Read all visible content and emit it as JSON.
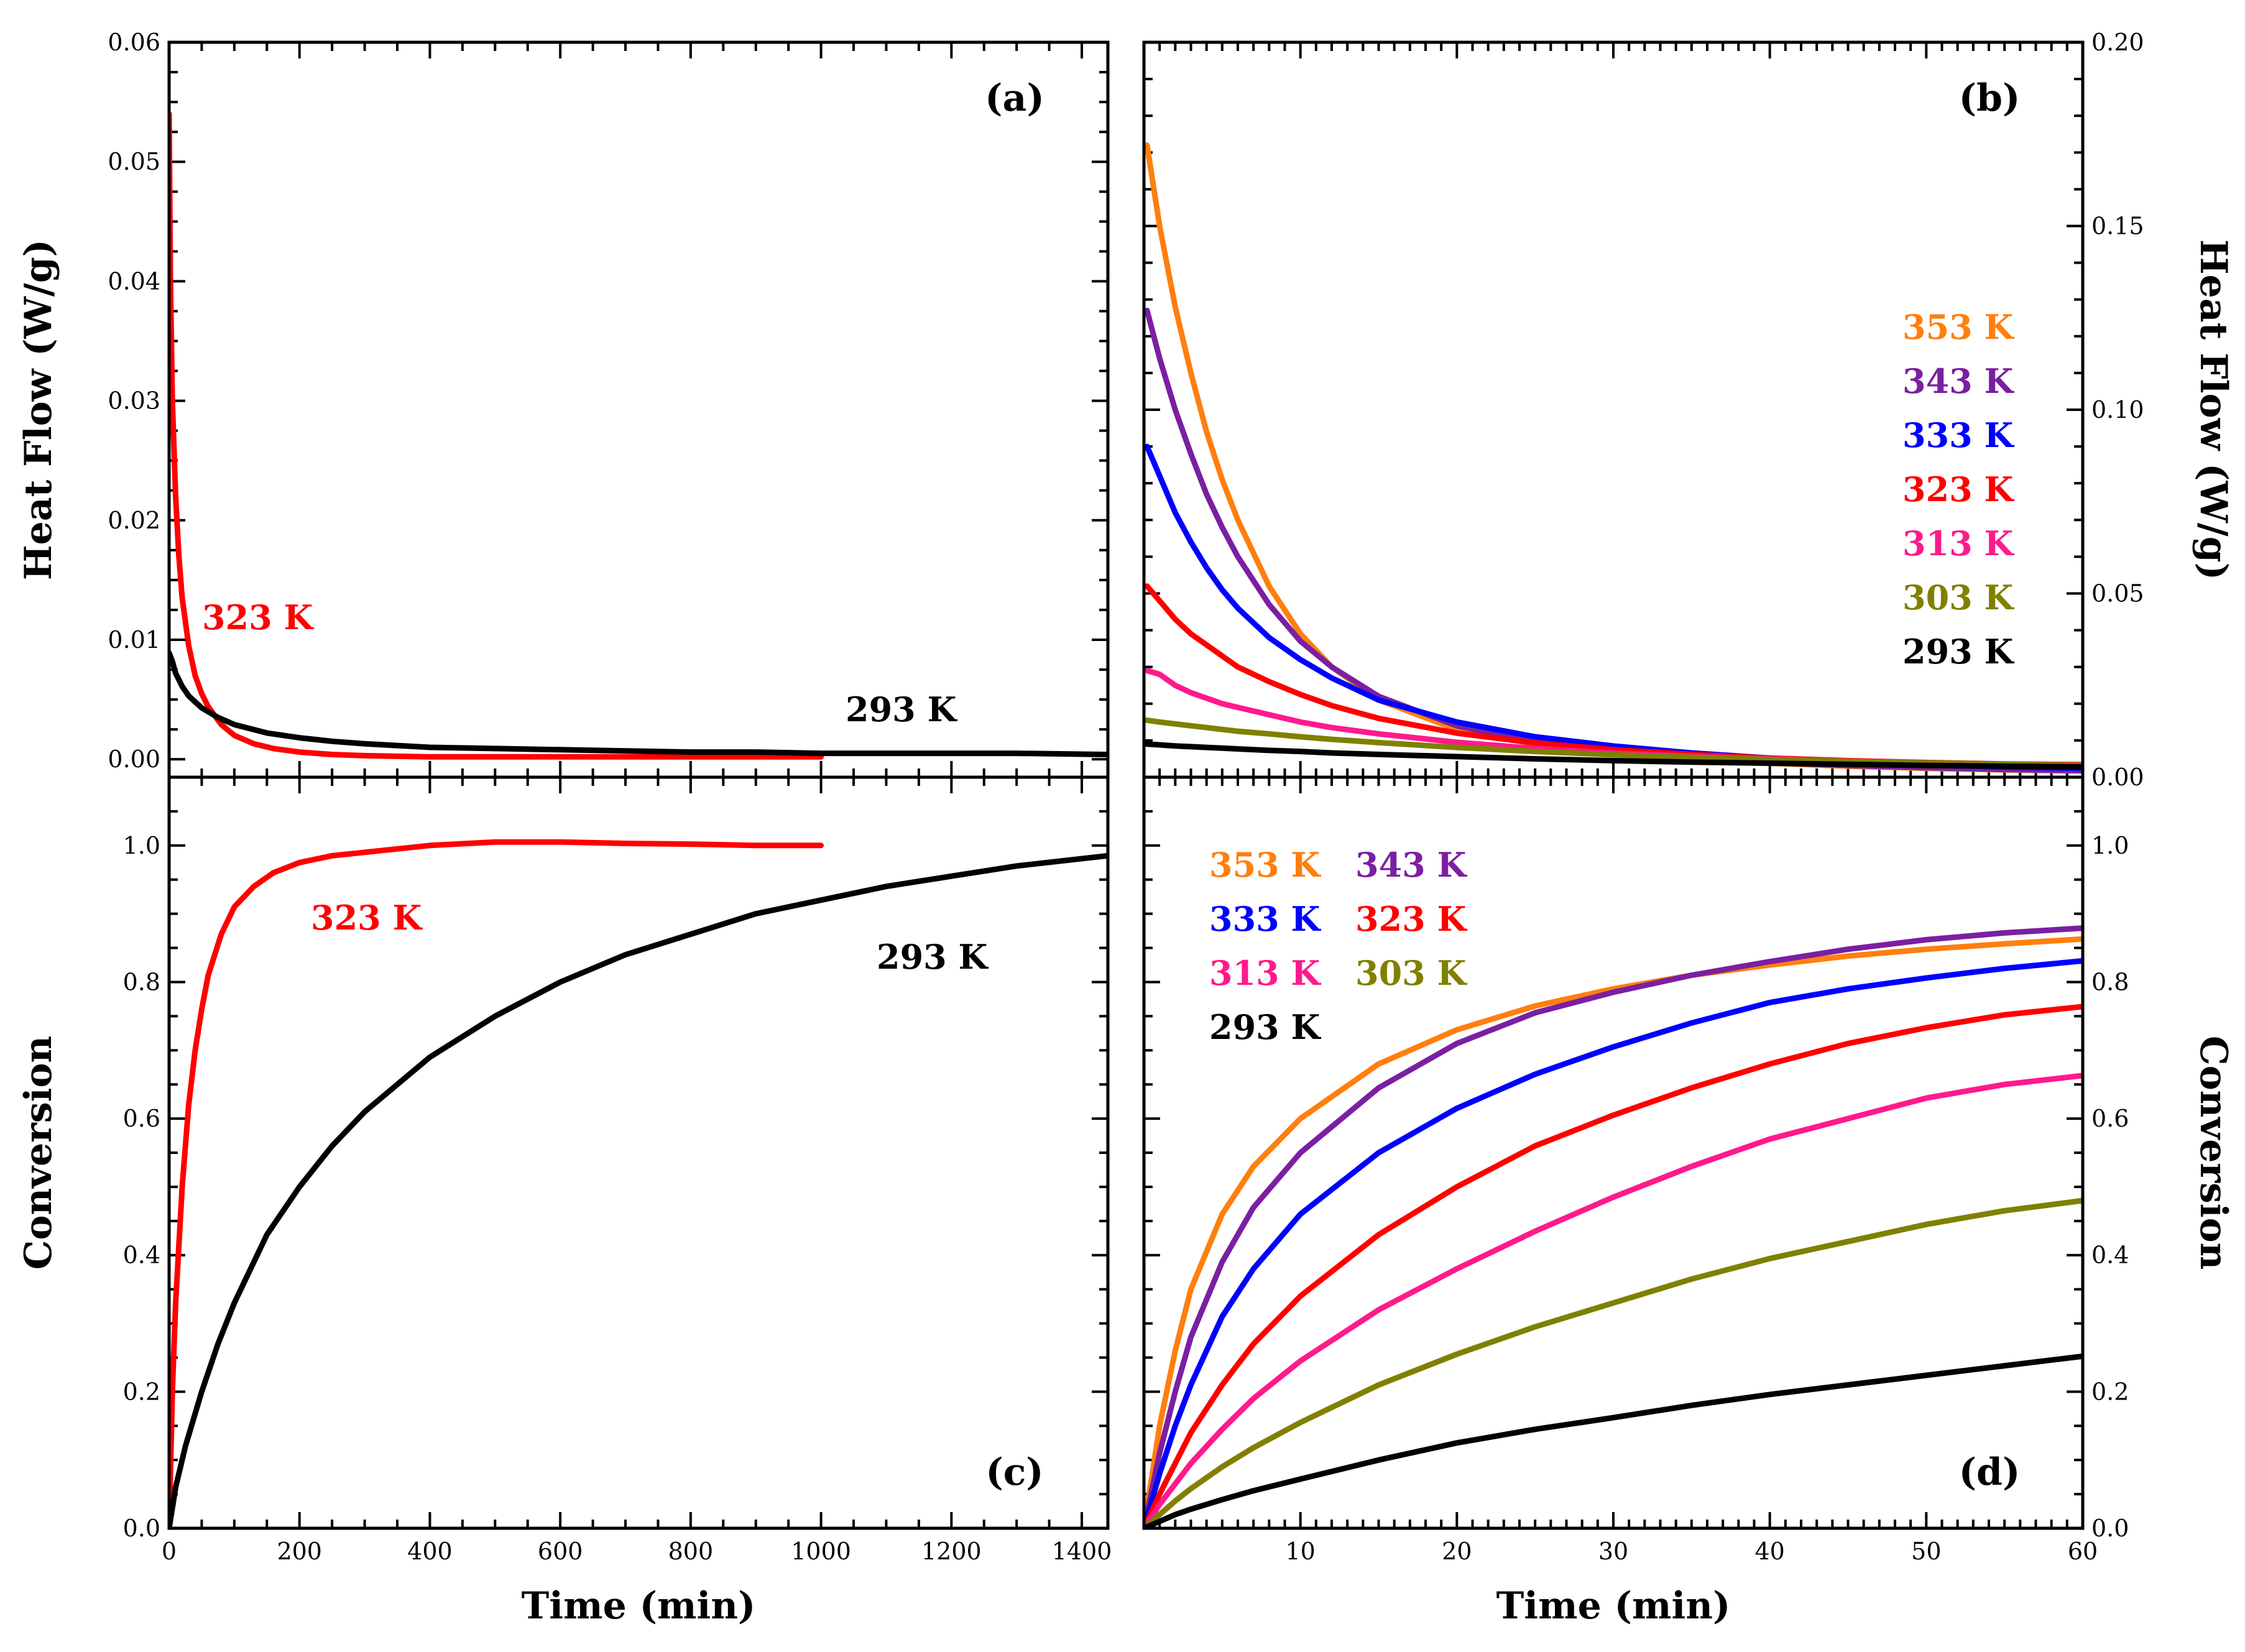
{
  "chart_data": [
    {
      "panel": "(a)",
      "type": "line",
      "xlabel": "",
      "ylabel": "Heat Flow (W/g)",
      "xlim": [
        0,
        1440
      ],
      "ylim": [
        -0.0015,
        0.06
      ],
      "x_ticks": [],
      "y_ticks": [
        "0.00",
        "0.01",
        "0.02",
        "0.03",
        "0.04",
        "0.05",
        "0.06"
      ],
      "annotations": [
        {
          "text": "323 K",
          "color": "#ff0000",
          "x": 50,
          "y": 0.0115
        },
        {
          "text": "293 K",
          "color": "#000000",
          "x": 1050,
          "y": 0.0043
        }
      ],
      "series": [
        {
          "label": "323 K",
          "color": "#ff0000",
          "x": [
            0,
            2,
            5,
            10,
            15,
            20,
            30,
            40,
            50,
            60,
            80,
            100,
            130,
            160,
            200,
            250,
            300,
            400,
            500,
            600,
            700,
            800,
            900,
            1000
          ],
          "y": [
            0.054,
            0.04,
            0.03,
            0.022,
            0.017,
            0.0135,
            0.0095,
            0.007,
            0.0055,
            0.0044,
            0.0029,
            0.002,
            0.0013,
            0.0009,
            0.0006,
            0.0004,
            0.0003,
            0.0002,
            0.0002,
            0.0002,
            0.0002,
            0.0002,
            0.0002,
            0.0002
          ]
        },
        {
          "label": "293 K",
          "color": "#000000",
          "x": [
            0,
            5,
            10,
            20,
            30,
            50,
            75,
            100,
            150,
            200,
            250,
            300,
            400,
            500,
            600,
            700,
            800,
            900,
            1000,
            1100,
            1200,
            1300,
            1440
          ],
          "y": [
            0.0089,
            0.0082,
            0.0072,
            0.0061,
            0.0053,
            0.0043,
            0.0035,
            0.0029,
            0.0022,
            0.0018,
            0.0015,
            0.0013,
            0.001,
            0.0009,
            0.0008,
            0.0007,
            0.0006,
            0.0006,
            0.0005,
            0.0005,
            0.0005,
            0.0005,
            0.0004
          ]
        }
      ]
    },
    {
      "panel": "(b)",
      "type": "line",
      "xlabel": "",
      "ylabel": "Heat Flow (W/g)",
      "xlim": [
        0,
        60
      ],
      "ylim": [
        0,
        0.2
      ],
      "x_ticks": [],
      "y_ticks": [
        "0.00",
        "0.05",
        "0.10",
        "0.15",
        "0.20"
      ],
      "legend": {
        "position": "right",
        "items": [
          {
            "text": "353 K",
            "color": "#ff7f0e"
          },
          {
            "text": "343 K",
            "color": "#7b1fa2"
          },
          {
            "text": "333 K",
            "color": "#0000ff"
          },
          {
            "text": "323 K",
            "color": "#ff0000"
          },
          {
            "text": "313 K",
            "color": "#ff1a8c"
          },
          {
            "text": "303 K",
            "color": "#808000"
          },
          {
            "text": "293 K",
            "color": "#000000"
          }
        ]
      },
      "series": [
        {
          "label": "353 K",
          "color": "#ff7f0e",
          "x": [
            0.2,
            1,
            2,
            3,
            4,
            5,
            6,
            8,
            10,
            12,
            15,
            20,
            25,
            30,
            35,
            40,
            45,
            50,
            55,
            60
          ],
          "y": [
            0.172,
            0.15,
            0.128,
            0.11,
            0.094,
            0.081,
            0.07,
            0.052,
            0.039,
            0.03,
            0.021,
            0.013,
            0.009,
            0.0065,
            0.005,
            0.0038,
            0.003,
            0.0024,
            0.002,
            0.0017
          ]
        },
        {
          "label": "343 K",
          "color": "#7b1fa2",
          "x": [
            0.2,
            1,
            2,
            3,
            4,
            5,
            6,
            8,
            10,
            12,
            15,
            20,
            25,
            30,
            35,
            40,
            45,
            50,
            55,
            60
          ],
          "y": [
            0.127,
            0.114,
            0.1,
            0.088,
            0.077,
            0.068,
            0.06,
            0.047,
            0.037,
            0.03,
            0.022,
            0.014,
            0.0095,
            0.007,
            0.0052,
            0.004,
            0.0032,
            0.0026,
            0.0021,
            0.0018
          ]
        },
        {
          "label": "333 K",
          "color": "#0000ff",
          "x": [
            0.2,
            1,
            2,
            3,
            4,
            5,
            6,
            8,
            10,
            12,
            15,
            20,
            25,
            30,
            35,
            40,
            45,
            50,
            55,
            60
          ],
          "y": [
            0.09,
            0.082,
            0.072,
            0.064,
            0.057,
            0.051,
            0.046,
            0.038,
            0.032,
            0.027,
            0.021,
            0.015,
            0.011,
            0.0085,
            0.0066,
            0.0052,
            0.0042,
            0.0034,
            0.0028,
            0.0024
          ]
        },
        {
          "label": "323 K",
          "color": "#ff0000",
          "x": [
            0.2,
            1,
            2,
            3,
            4,
            5,
            6,
            8,
            10,
            12,
            15,
            20,
            25,
            30,
            35,
            40,
            45,
            50,
            55,
            60
          ],
          "y": [
            0.052,
            0.048,
            0.043,
            0.039,
            0.036,
            0.033,
            0.03,
            0.026,
            0.0225,
            0.0195,
            0.016,
            0.012,
            0.0093,
            0.0075,
            0.0062,
            0.0052,
            0.0045,
            0.004,
            0.0036,
            0.0034
          ]
        },
        {
          "label": "313 K",
          "color": "#ff1a8c",
          "x": [
            0.2,
            1,
            2,
            3,
            4,
            5,
            6,
            8,
            10,
            12,
            15,
            20,
            25,
            30,
            35,
            40,
            45,
            50,
            55,
            60
          ],
          "y": [
            0.029,
            0.028,
            0.025,
            0.023,
            0.0215,
            0.02,
            0.019,
            0.017,
            0.015,
            0.0135,
            0.0118,
            0.0095,
            0.0078,
            0.0066,
            0.0057,
            0.005,
            0.0044,
            0.0039,
            0.0035,
            0.0032
          ]
        },
        {
          "label": "303 K",
          "color": "#808000",
          "x": [
            0.2,
            1,
            2,
            3,
            4,
            5,
            6,
            8,
            10,
            12,
            15,
            20,
            25,
            30,
            35,
            40,
            45,
            50,
            55,
            60
          ],
          "y": [
            0.0155,
            0.015,
            0.0145,
            0.014,
            0.0135,
            0.013,
            0.0125,
            0.0118,
            0.011,
            0.0103,
            0.0094,
            0.0081,
            0.007,
            0.0061,
            0.0054,
            0.0048,
            0.0043,
            0.0039,
            0.0035,
            0.0032
          ]
        },
        {
          "label": "293 K",
          "color": "#000000",
          "x": [
            0.2,
            1,
            2,
            3,
            4,
            5,
            6,
            8,
            10,
            12,
            15,
            20,
            25,
            30,
            35,
            40,
            45,
            50,
            55,
            60
          ],
          "y": [
            0.009,
            0.0088,
            0.0085,
            0.0083,
            0.0081,
            0.0079,
            0.0077,
            0.0073,
            0.007,
            0.0066,
            0.0062,
            0.0056,
            0.005,
            0.0045,
            0.0041,
            0.0038,
            0.0035,
            0.0032,
            0.003,
            0.0028
          ]
        }
      ]
    },
    {
      "panel": "(c)",
      "type": "line",
      "xlabel": "Time (min)",
      "ylabel": "Conversion",
      "xlim": [
        0,
        1440
      ],
      "ylim": [
        0,
        1.1
      ],
      "x_ticks": [
        "0",
        "200",
        "400",
        "600",
        "800",
        "1000",
        "1200",
        "1400"
      ],
      "y_ticks": [
        "0.0",
        "0.2",
        "0.4",
        "0.6",
        "0.8",
        "1.0"
      ],
      "annotations": [
        {
          "text": "323 K",
          "color": "#ff0000",
          "x": 220,
          "y": 0.9
        },
        {
          "text": "293 K",
          "color": "#000000",
          "x": 1090,
          "y": 0.84
        }
      ],
      "series": [
        {
          "label": "323 K",
          "color": "#ff0000",
          "x": [
            0,
            5,
            10,
            20,
            30,
            40,
            50,
            60,
            80,
            100,
            130,
            160,
            200,
            250,
            300,
            400,
            500,
            600,
            700,
            800,
            900,
            1000
          ],
          "y": [
            0.0,
            0.2,
            0.33,
            0.5,
            0.62,
            0.7,
            0.76,
            0.81,
            0.87,
            0.91,
            0.94,
            0.96,
            0.975,
            0.985,
            0.99,
            1.0,
            1.005,
            1.005,
            1.003,
            1.002,
            1.0,
            1.0
          ]
        },
        {
          "label": "293 K",
          "color": "#000000",
          "x": [
            0,
            10,
            25,
            50,
            75,
            100,
            150,
            200,
            250,
            300,
            400,
            500,
            600,
            700,
            800,
            900,
            1000,
            1100,
            1200,
            1300,
            1440
          ],
          "y": [
            0.0,
            0.06,
            0.12,
            0.2,
            0.27,
            0.33,
            0.43,
            0.5,
            0.56,
            0.61,
            0.69,
            0.75,
            0.8,
            0.84,
            0.87,
            0.9,
            0.92,
            0.94,
            0.955,
            0.97,
            0.985
          ]
        }
      ]
    },
    {
      "panel": "(d)",
      "type": "line",
      "xlabel": "Time (min)",
      "ylabel": "Conversion",
      "xlim": [
        0,
        60
      ],
      "ylim": [
        0,
        1.1
      ],
      "x_ticks": [
        "10",
        "20",
        "30",
        "40",
        "50",
        "60"
      ],
      "y_ticks": [
        "0.0",
        "0.2",
        "0.4",
        "0.6",
        "0.8",
        "1.0"
      ],
      "legend": {
        "position": "top-left",
        "items": [
          {
            "text": "353 K",
            "color": "#ff7f0e"
          },
          {
            "text": "343 K",
            "color": "#7b1fa2"
          },
          {
            "text": "333 K",
            "color": "#0000ff"
          },
          {
            "text": "323 K",
            "color": "#ff0000"
          },
          {
            "text": "313 K",
            "color": "#ff1a8c"
          },
          {
            "text": "303 K",
            "color": "#808000"
          },
          {
            "text": "293 K",
            "color": "#000000"
          }
        ]
      },
      "series": [
        {
          "label": "353 K",
          "color": "#ff7f0e",
          "x": [
            0,
            1,
            2,
            3,
            5,
            7,
            10,
            15,
            20,
            25,
            30,
            35,
            40,
            45,
            50,
            55,
            60
          ],
          "y": [
            0.0,
            0.15,
            0.26,
            0.35,
            0.46,
            0.53,
            0.6,
            0.68,
            0.73,
            0.765,
            0.79,
            0.81,
            0.825,
            0.838,
            0.848,
            0.856,
            0.863
          ]
        },
        {
          "label": "343 K",
          "color": "#7b1fa2",
          "x": [
            0,
            1,
            2,
            3,
            5,
            7,
            10,
            15,
            20,
            25,
            30,
            35,
            40,
            45,
            50,
            55,
            60
          ],
          "y": [
            0.0,
            0.11,
            0.2,
            0.28,
            0.39,
            0.47,
            0.55,
            0.645,
            0.71,
            0.755,
            0.785,
            0.81,
            0.83,
            0.848,
            0.862,
            0.872,
            0.879
          ]
        },
        {
          "label": "333 K",
          "color": "#0000ff",
          "x": [
            0,
            1,
            2,
            3,
            5,
            7,
            10,
            15,
            20,
            25,
            30,
            35,
            40,
            45,
            50,
            55,
            60
          ],
          "y": [
            0.0,
            0.08,
            0.15,
            0.21,
            0.31,
            0.38,
            0.46,
            0.55,
            0.615,
            0.665,
            0.705,
            0.74,
            0.77,
            0.79,
            0.806,
            0.82,
            0.831
          ]
        },
        {
          "label": "323 K",
          "color": "#ff0000",
          "x": [
            0,
            1,
            2,
            3,
            5,
            7,
            10,
            15,
            20,
            25,
            30,
            35,
            40,
            45,
            50,
            55,
            60
          ],
          "y": [
            0.0,
            0.05,
            0.095,
            0.14,
            0.21,
            0.27,
            0.34,
            0.43,
            0.5,
            0.56,
            0.605,
            0.645,
            0.68,
            0.71,
            0.733,
            0.752,
            0.764
          ]
        },
        {
          "label": "313 K",
          "color": "#ff1a8c",
          "x": [
            0,
            1,
            2,
            3,
            5,
            7,
            10,
            15,
            20,
            25,
            30,
            35,
            40,
            45,
            50,
            55,
            60
          ],
          "y": [
            0.0,
            0.035,
            0.065,
            0.095,
            0.145,
            0.19,
            0.245,
            0.32,
            0.38,
            0.435,
            0.485,
            0.53,
            0.57,
            0.6,
            0.63,
            0.65,
            0.663
          ]
        },
        {
          "label": "303 K",
          "color": "#808000",
          "x": [
            0,
            1,
            2,
            3,
            5,
            7,
            10,
            15,
            20,
            25,
            30,
            35,
            40,
            45,
            50,
            55,
            60
          ],
          "y": [
            0.0,
            0.02,
            0.04,
            0.058,
            0.09,
            0.118,
            0.155,
            0.21,
            0.255,
            0.295,
            0.33,
            0.365,
            0.395,
            0.42,
            0.445,
            0.465,
            0.48
          ]
        },
        {
          "label": "293 K",
          "color": "#000000",
          "x": [
            0,
            1,
            2,
            3,
            5,
            7,
            10,
            15,
            20,
            25,
            30,
            35,
            40,
            45,
            50,
            55,
            60
          ],
          "y": [
            0.0,
            0.01,
            0.02,
            0.028,
            0.042,
            0.055,
            0.072,
            0.1,
            0.125,
            0.145,
            0.162,
            0.18,
            0.196,
            0.21,
            0.224,
            0.238,
            0.252
          ]
        }
      ]
    }
  ]
}
